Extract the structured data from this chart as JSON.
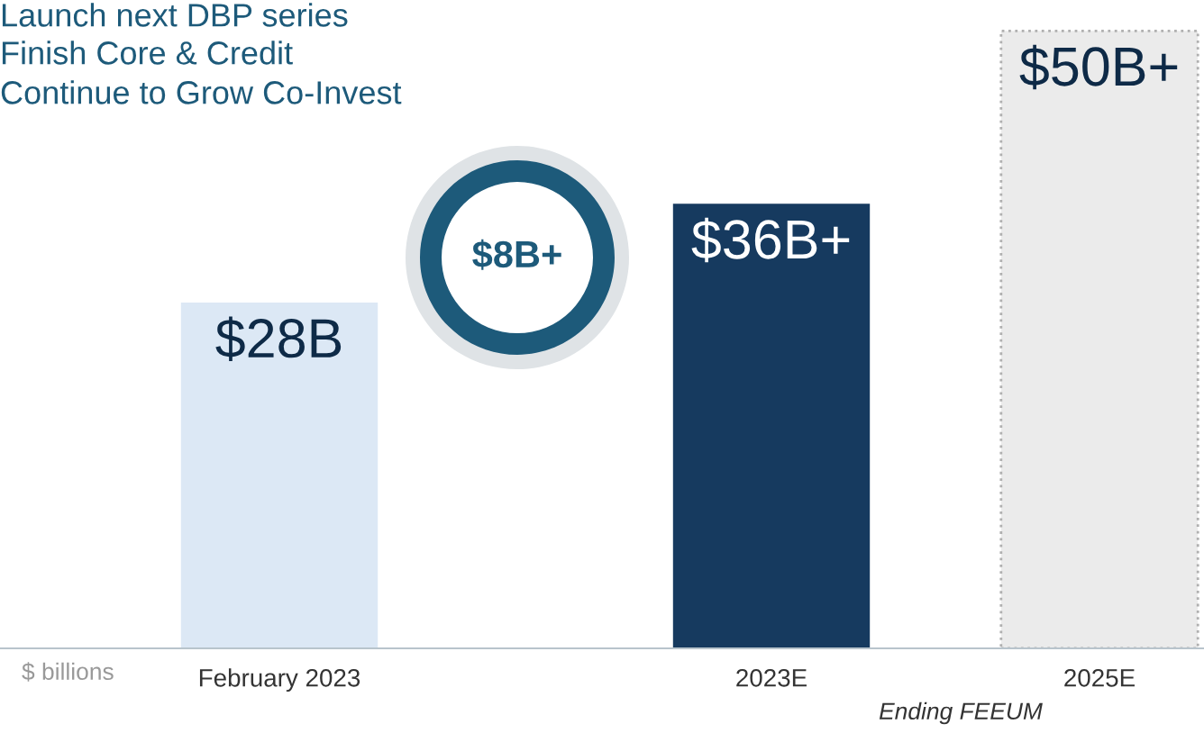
{
  "chart_data": {
    "type": "bar",
    "categories": [
      "February 2023",
      null,
      null,
      "2023E",
      null,
      "2025E"
    ],
    "values": [
      28,
      null,
      null,
      36,
      null,
      50
    ],
    "colors": [
      "#dce8f5",
      null,
      null,
      "#163a5f",
      null,
      "#ebebeb"
    ],
    "value_labels": [
      "$28B",
      null,
      null,
      "$36B+",
      null,
      "$50B+"
    ],
    "annotations": [
      "Launch next DBP series",
      "Finish Core & Credit",
      "Continue to Grow Co-Invest",
      "$8B+",
      "$ billions",
      "Ending FEEUM"
    ]
  }
}
